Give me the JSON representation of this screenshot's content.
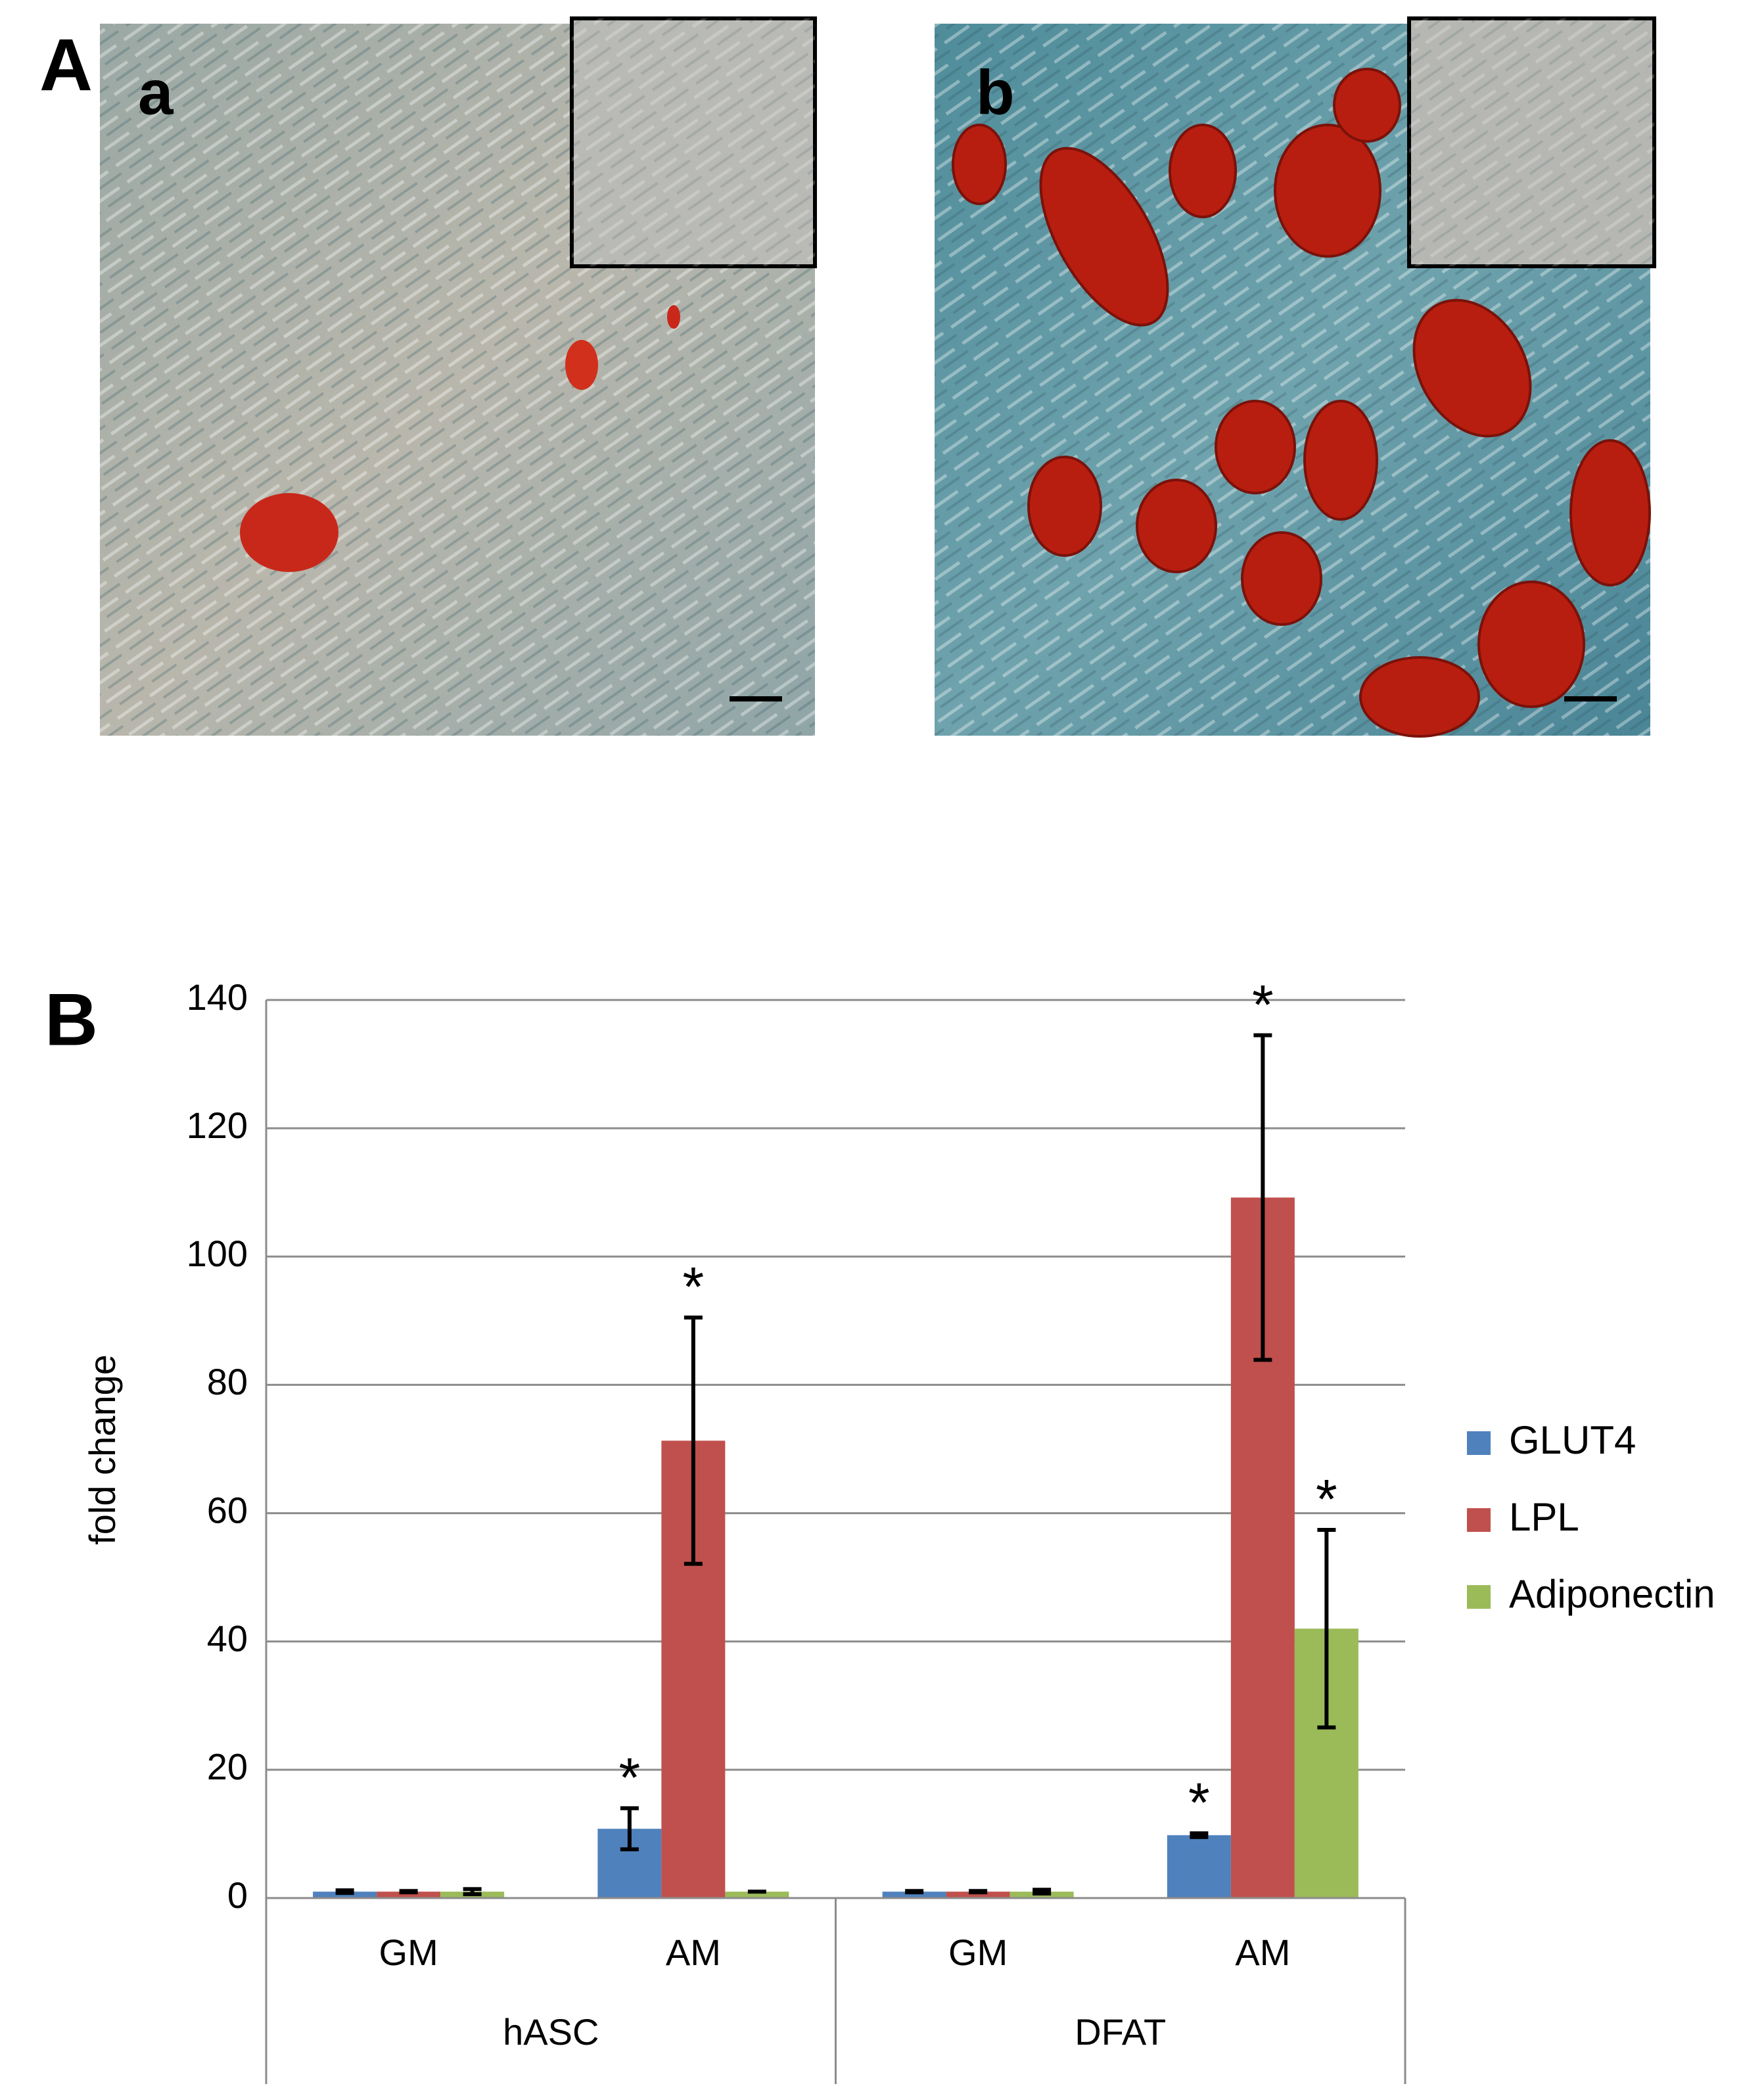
{
  "panels": {
    "A": "A",
    "a": "a",
    "b": "b",
    "B": "B"
  },
  "chart_data": {
    "type": "bar",
    "y_label": "fold change",
    "categories": [
      "GM",
      "AM",
      "GM",
      "AM"
    ],
    "groups": [
      {
        "label": "hASC",
        "span": 2
      },
      {
        "label": "DFAT",
        "span": 2
      }
    ],
    "series": [
      {
        "name": "GLUT4",
        "color": "#4f81bd",
        "values": [
          1,
          10.8,
          1,
          9.8
        ],
        "errors": [
          0.2,
          3.2,
          0.1,
          0.3
        ],
        "markers": [
          null,
          "*",
          null,
          "*"
        ]
      },
      {
        "name": "LPL",
        "color": "#c0504d",
        "values": [
          1,
          71.3,
          1,
          109.2
        ],
        "errors": [
          0.1,
          19.2,
          0.1,
          25.3
        ],
        "markers": [
          null,
          "*",
          null,
          "*"
        ]
      },
      {
        "name": "Adiponectin",
        "color": "#9bbb59",
        "values": [
          1,
          1,
          1,
          42
        ],
        "errors": [
          0.4,
          0,
          0.3,
          15.4
        ],
        "markers": [
          null,
          null,
          null,
          "*"
        ]
      }
    ],
    "ylim": [
      0,
      140
    ],
    "yticks": [
      0,
      20,
      40,
      60,
      80,
      100,
      120,
      140
    ],
    "grid": true,
    "legend": "right"
  }
}
